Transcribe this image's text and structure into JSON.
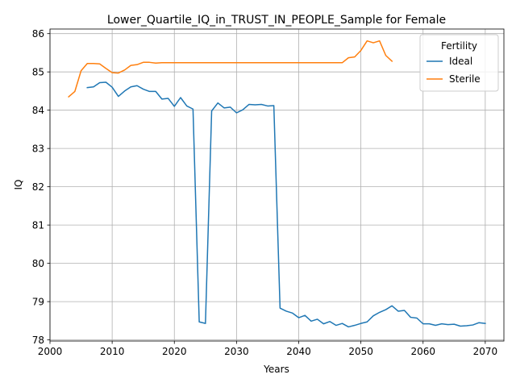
{
  "chart_data": {
    "type": "line",
    "title": "Lower_Quartile_IQ_in_TRUST_IN_PEOPLE_Sample for Female",
    "xlabel": "Years",
    "ylabel": "IQ",
    "xlim": [
      2000,
      2073
    ],
    "ylim": [
      77.97,
      86.12
    ],
    "xticks": [
      2000,
      2010,
      2020,
      2030,
      2040,
      2050,
      2060,
      2070
    ],
    "yticks": [
      78,
      79,
      80,
      81,
      82,
      83,
      84,
      85,
      86
    ],
    "grid": true,
    "legend": {
      "title": "Fertility",
      "placement": "top-right"
    },
    "series": [
      {
        "name": "Ideal",
        "color": "#1f77b4",
        "x": [
          2006,
          2007,
          2008,
          2009,
          2010,
          2011,
          2012,
          2013,
          2014,
          2015,
          2016,
          2017,
          2018,
          2019,
          2020,
          2021,
          2022,
          2023,
          2024,
          2025,
          2026,
          2027,
          2028,
          2029,
          2030,
          2031,
          2032,
          2033,
          2034,
          2035,
          2036,
          2037,
          2038,
          2039,
          2040,
          2041,
          2042,
          2043,
          2044,
          2045,
          2046,
          2047,
          2048,
          2049,
          2050,
          2051,
          2052,
          2053,
          2054,
          2055,
          2056,
          2057,
          2058,
          2059,
          2060,
          2061,
          2062,
          2063,
          2064,
          2065,
          2066,
          2067,
          2068,
          2069,
          2070
        ],
        "y": [
          84.59,
          84.61,
          84.72,
          84.73,
          84.6,
          84.36,
          84.5,
          84.61,
          84.64,
          84.55,
          84.49,
          84.49,
          84.29,
          84.31,
          84.1,
          84.33,
          84.11,
          84.03,
          78.47,
          78.43,
          83.98,
          84.19,
          84.06,
          84.08,
          83.93,
          84.01,
          84.15,
          84.14,
          84.15,
          84.11,
          84.12,
          78.83,
          78.75,
          78.7,
          78.58,
          78.64,
          78.49,
          78.54,
          78.42,
          78.48,
          78.38,
          78.43,
          78.34,
          78.38,
          78.43,
          78.47,
          78.63,
          78.72,
          78.79,
          78.89,
          78.75,
          78.77,
          78.59,
          78.57,
          78.42,
          78.42,
          78.38,
          78.42,
          78.4,
          78.41,
          78.36,
          78.37,
          78.39,
          78.45,
          78.43
        ]
      },
      {
        "name": "Sterile",
        "color": "#ff7f0e",
        "x": [
          2003,
          2004,
          2005,
          2006,
          2007,
          2008,
          2009,
          2010,
          2011,
          2012,
          2013,
          2014,
          2015,
          2016,
          2017,
          2018,
          2019,
          2020,
          2021,
          2022,
          2023,
          2024,
          2025,
          2026,
          2027,
          2028,
          2029,
          2030,
          2031,
          2032,
          2033,
          2034,
          2035,
          2036,
          2037,
          2038,
          2039,
          2040,
          2041,
          2042,
          2043,
          2044,
          2045,
          2046,
          2047,
          2048,
          2049,
          2050,
          2051,
          2052,
          2053,
          2054,
          2055
        ],
        "y": [
          84.35,
          84.49,
          85.03,
          85.22,
          85.22,
          85.21,
          85.09,
          84.98,
          84.97,
          85.05,
          85.17,
          85.19,
          85.25,
          85.25,
          85.23,
          85.24,
          85.24,
          85.24,
          85.24,
          85.24,
          85.24,
          85.24,
          85.24,
          85.24,
          85.24,
          85.24,
          85.24,
          85.24,
          85.24,
          85.24,
          85.24,
          85.24,
          85.24,
          85.24,
          85.24,
          85.24,
          85.24,
          85.24,
          85.24,
          85.24,
          85.24,
          85.24,
          85.24,
          85.24,
          85.24,
          85.37,
          85.39,
          85.56,
          85.81,
          85.76,
          85.81,
          85.43,
          85.28
        ]
      }
    ]
  }
}
